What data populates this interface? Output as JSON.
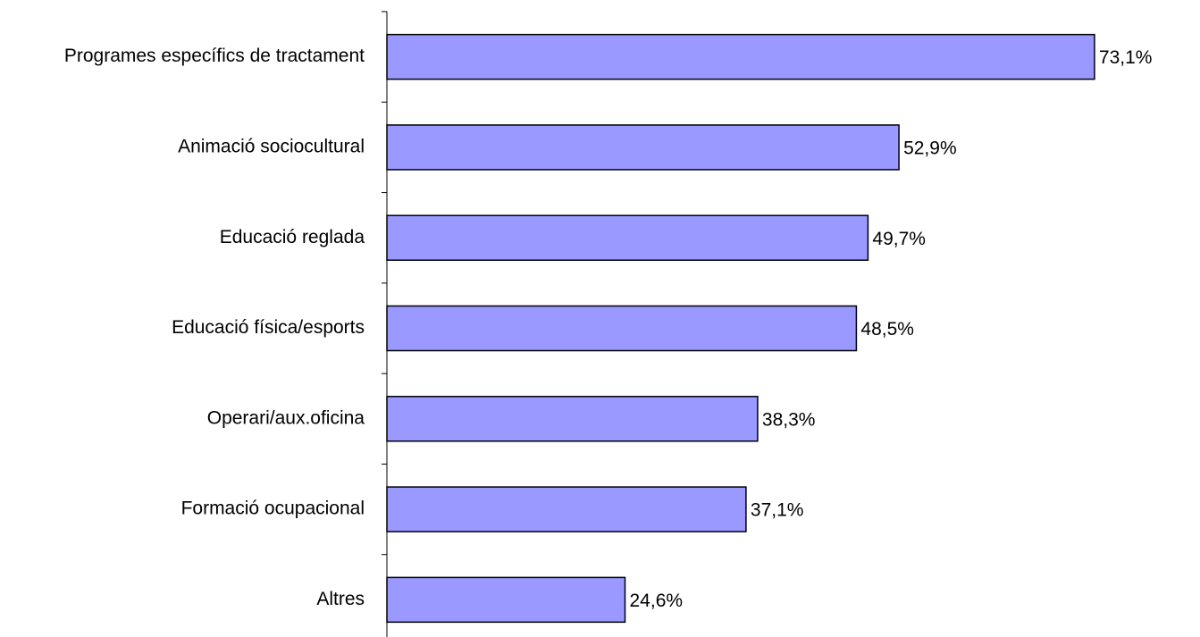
{
  "chart_data": {
    "type": "bar",
    "orientation": "horizontal",
    "categories": [
      "Programes específics de tractament",
      "Animació sociocultural",
      "Educació reglada",
      "Educació física/esports",
      "Operari/aux.oficina",
      "Formació ocupacional",
      "Altres"
    ],
    "values": [
      73.1,
      52.9,
      49.7,
      48.5,
      38.3,
      37.1,
      24.6
    ],
    "value_labels": [
      "73,1%",
      "52,9%",
      "49,7%",
      "48,5%",
      "38,3%",
      "37,1%",
      "24,6%"
    ],
    "color": "#9999ff",
    "xlim": [
      0,
      84
    ]
  }
}
